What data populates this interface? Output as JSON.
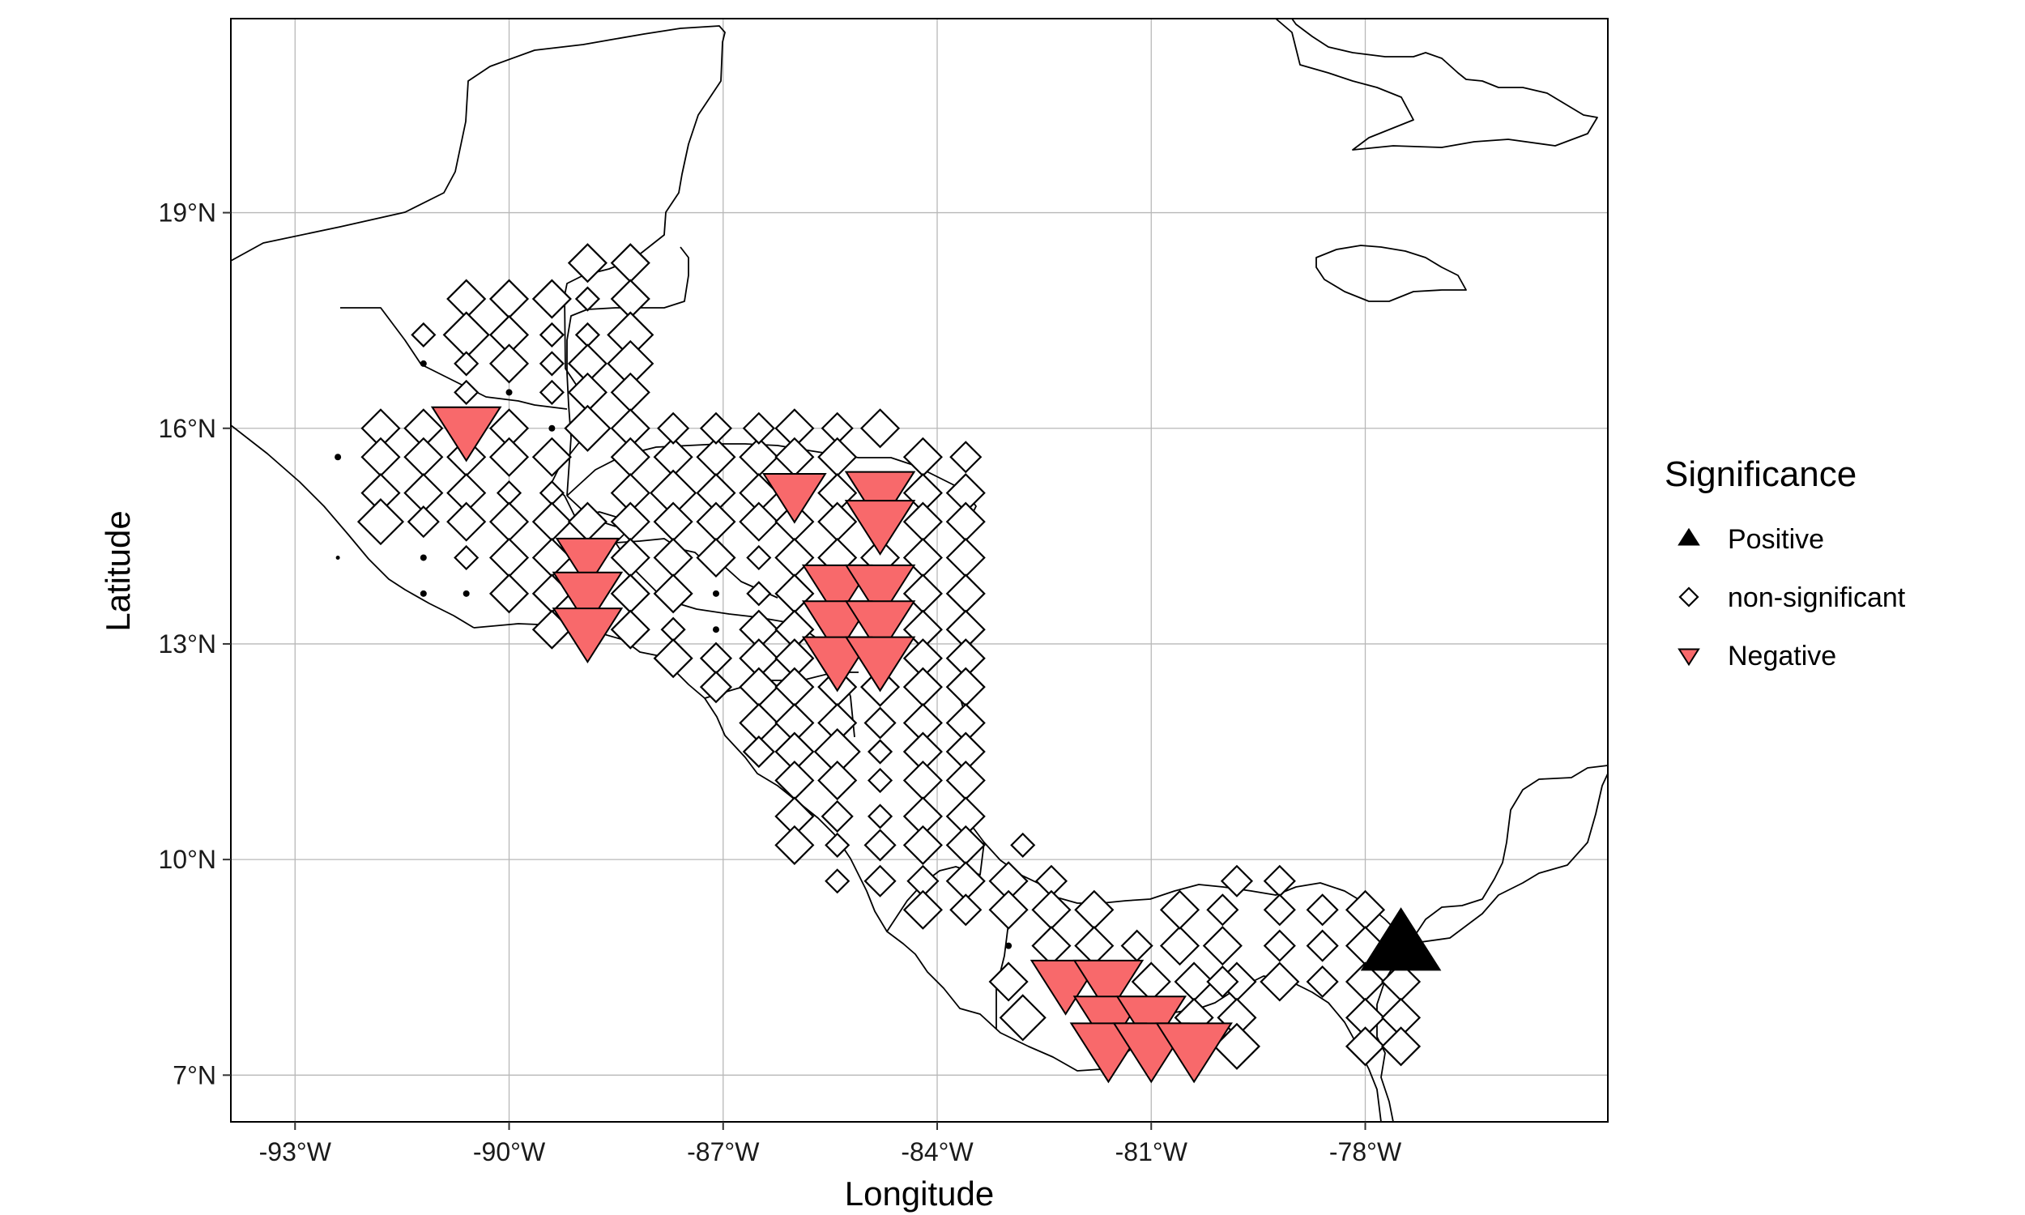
{
  "map": {
    "xlabel": "Longitude",
    "ylabel": "Latitude",
    "xlim": [
      -93.9,
      -74.6
    ],
    "ylim": [
      6.35,
      21.7
    ],
    "x_ticks": [
      {
        "value": -93,
        "label": "-93°W"
      },
      {
        "value": -90,
        "label": "-90°W"
      },
      {
        "value": -87,
        "label": "-87°W"
      },
      {
        "value": -84,
        "label": "-84°W"
      },
      {
        "value": -81,
        "label": "-81°W"
      },
      {
        "value": -78,
        "label": "-78°W"
      }
    ],
    "y_ticks": [
      {
        "value": 7,
        "label": "7°N"
      },
      {
        "value": 10,
        "label": "10°N"
      },
      {
        "value": 13,
        "label": "13°N"
      },
      {
        "value": 16,
        "label": "16°N"
      },
      {
        "value": 19,
        "label": "19°N"
      }
    ],
    "grid": true,
    "colors": {
      "negative": "#F8696B",
      "positive": "#000000",
      "nonsig_fill": "#ffffff",
      "outline": "#000000"
    }
  },
  "legend": {
    "title": "Significance",
    "position": "right",
    "items": [
      {
        "label": "Positive",
        "shape": "triangle-up",
        "color": "#000000"
      },
      {
        "label": "non-significant",
        "shape": "diamond",
        "color": "#ffffff"
      },
      {
        "label": "Negative",
        "shape": "triangle-down",
        "color": "#F8696B"
      }
    ]
  },
  "chart_data": {
    "type": "scatter",
    "xlabel": "Longitude",
    "ylabel": "Latitude",
    "xlim": [
      -93.9,
      -74.6
    ],
    "ylim": [
      6.35,
      21.7
    ],
    "size_scale": "magnitude 0-6",
    "series": [
      {
        "name": "Positive",
        "points": [
          [
            -77.5,
            8.8,
            6
          ]
        ]
      },
      {
        "name": "Negative",
        "points": [
          [
            -90.6,
            16.0,
            5
          ],
          [
            -86.0,
            15.1,
            4
          ],
          [
            -84.8,
            15.1,
            5
          ],
          [
            -84.8,
            14.7,
            5
          ],
          [
            -88.9,
            14.2,
            4
          ],
          [
            -88.9,
            13.7,
            5
          ],
          [
            -88.9,
            13.2,
            5
          ],
          [
            -85.4,
            13.8,
            5
          ],
          [
            -84.8,
            13.8,
            5
          ],
          [
            -85.4,
            13.3,
            5
          ],
          [
            -84.8,
            13.3,
            5
          ],
          [
            -85.4,
            12.8,
            5
          ],
          [
            -84.8,
            12.8,
            5
          ],
          [
            -82.2,
            8.3,
            5
          ],
          [
            -81.6,
            8.3,
            5
          ],
          [
            -81.6,
            7.8,
            5
          ],
          [
            -81.0,
            7.8,
            5
          ],
          [
            -81.6,
            7.4,
            6
          ],
          [
            -81.0,
            7.4,
            6
          ],
          [
            -80.4,
            7.4,
            6
          ]
        ]
      },
      {
        "name": "non-significant",
        "points": [
          [
            -88.9,
            18.3,
            4
          ],
          [
            -88.9,
            17.8,
            2
          ],
          [
            -88.9,
            17.3,
            2
          ],
          [
            -88.9,
            16.9,
            4
          ],
          [
            -88.9,
            16.5,
            4
          ],
          [
            -88.9,
            16.0,
            5
          ],
          [
            -88.3,
            18.3,
            4
          ],
          [
            -88.3,
            17.8,
            4
          ],
          [
            -88.3,
            17.3,
            5
          ],
          [
            -88.3,
            16.9,
            5
          ],
          [
            -88.3,
            16.5,
            4
          ],
          [
            -88.3,
            16.0,
            4
          ],
          [
            -90.6,
            17.8,
            4
          ],
          [
            -90.0,
            17.8,
            4
          ],
          [
            -89.4,
            17.8,
            4
          ],
          [
            -91.2,
            17.3,
            2
          ],
          [
            -90.6,
            17.3,
            5
          ],
          [
            -90.0,
            17.3,
            4
          ],
          [
            -89.4,
            17.3,
            2
          ],
          [
            -91.2,
            16.9,
            1
          ],
          [
            -90.6,
            16.9,
            2
          ],
          [
            -90.0,
            16.9,
            4
          ],
          [
            -89.4,
            16.9,
            2
          ],
          [
            -90.6,
            16.5,
            2
          ],
          [
            -90.0,
            16.5,
            1
          ],
          [
            -89.4,
            16.5,
            2
          ],
          [
            -91.8,
            16.0,
            4
          ],
          [
            -91.2,
            16.0,
            4
          ],
          [
            -90.0,
            16.0,
            4
          ],
          [
            -89.4,
            16.0,
            1
          ],
          [
            -91.8,
            15.6,
            4
          ],
          [
            -91.2,
            15.6,
            4
          ],
          [
            -90.6,
            15.6,
            4
          ],
          [
            -90.0,
            15.6,
            4
          ],
          [
            -89.4,
            15.6,
            4
          ],
          [
            -92.4,
            15.6,
            1
          ],
          [
            -91.2,
            15.1,
            4
          ],
          [
            -90.6,
            15.1,
            4
          ],
          [
            -90.0,
            15.1,
            2
          ],
          [
            -89.4,
            15.1,
            2
          ],
          [
            -91.8,
            15.1,
            4
          ],
          [
            -91.8,
            14.7,
            5
          ],
          [
            -91.2,
            14.7,
            3
          ],
          [
            -90.6,
            14.7,
            4
          ],
          [
            -90.0,
            14.7,
            4
          ],
          [
            -89.4,
            14.7,
            4
          ],
          [
            -88.9,
            14.7,
            4
          ],
          [
            -91.2,
            14.2,
            1
          ],
          [
            -90.6,
            14.2,
            2
          ],
          [
            -90.0,
            14.2,
            4
          ],
          [
            -89.4,
            14.2,
            4
          ],
          [
            -92.4,
            14.2,
            0
          ],
          [
            -91.2,
            13.7,
            1
          ],
          [
            -90.6,
            13.7,
            1
          ],
          [
            -89.4,
            13.7,
            4
          ],
          [
            -90.0,
            13.7,
            4
          ],
          [
            -89.4,
            13.2,
            4
          ],
          [
            -88.3,
            15.6,
            4
          ],
          [
            -87.7,
            15.6,
            4
          ],
          [
            -87.1,
            15.6,
            4
          ],
          [
            -86.5,
            15.6,
            4
          ],
          [
            -87.7,
            16.0,
            3
          ],
          [
            -87.1,
            16.0,
            3
          ],
          [
            -86.5,
            16.0,
            3
          ],
          [
            -86.0,
            16.0,
            4
          ],
          [
            -85.4,
            16.0,
            3
          ],
          [
            -84.8,
            16.0,
            4
          ],
          [
            -86.0,
            15.6,
            4
          ],
          [
            -85.4,
            15.6,
            4
          ],
          [
            -84.2,
            15.6,
            4
          ],
          [
            -83.6,
            15.6,
            3
          ],
          [
            -88.3,
            15.1,
            4
          ],
          [
            -87.7,
            15.1,
            5
          ],
          [
            -87.1,
            15.1,
            4
          ],
          [
            -86.5,
            15.1,
            4
          ],
          [
            -85.4,
            15.1,
            4
          ],
          [
            -84.2,
            15.1,
            4
          ],
          [
            -83.6,
            15.1,
            4
          ],
          [
            -88.3,
            14.7,
            4
          ],
          [
            -87.7,
            14.7,
            4
          ],
          [
            -87.1,
            14.7,
            4
          ],
          [
            -86.5,
            14.7,
            4
          ],
          [
            -86.0,
            14.7,
            4
          ],
          [
            -85.4,
            14.7,
            4
          ],
          [
            -84.2,
            14.7,
            4
          ],
          [
            -83.6,
            14.7,
            4
          ],
          [
            -88.3,
            14.2,
            4
          ],
          [
            -87.7,
            14.2,
            4
          ],
          [
            -87.1,
            14.2,
            4
          ],
          [
            -86.5,
            14.2,
            2
          ],
          [
            -86.0,
            14.2,
            4
          ],
          [
            -85.4,
            14.2,
            4
          ],
          [
            -84.8,
            14.2,
            4
          ],
          [
            -84.2,
            14.2,
            4
          ],
          [
            -83.6,
            14.2,
            4
          ],
          [
            -88.3,
            13.7,
            4
          ],
          [
            -87.7,
            13.7,
            4
          ],
          [
            -87.1,
            13.7,
            1
          ],
          [
            -86.5,
            13.7,
            2
          ],
          [
            -86.0,
            13.7,
            4
          ],
          [
            -84.2,
            13.7,
            4
          ],
          [
            -83.6,
            13.7,
            4
          ],
          [
            -88.3,
            13.2,
            4
          ],
          [
            -87.7,
            13.2,
            2
          ],
          [
            -87.1,
            13.2,
            1
          ],
          [
            -86.5,
            13.2,
            4
          ],
          [
            -86.0,
            13.2,
            4
          ],
          [
            -84.2,
            13.2,
            4
          ],
          [
            -83.6,
            13.2,
            4
          ],
          [
            -87.7,
            12.8,
            4
          ],
          [
            -87.1,
            12.8,
            3
          ],
          [
            -86.5,
            12.8,
            4
          ],
          [
            -86.0,
            12.8,
            4
          ],
          [
            -84.2,
            12.8,
            4
          ],
          [
            -83.6,
            12.8,
            4
          ],
          [
            -87.1,
            12.4,
            3
          ],
          [
            -86.5,
            12.4,
            4
          ],
          [
            -86.0,
            12.4,
            4
          ],
          [
            -85.4,
            12.4,
            4
          ],
          [
            -84.8,
            12.4,
            4
          ],
          [
            -84.2,
            12.4,
            4
          ],
          [
            -83.6,
            12.4,
            4
          ],
          [
            -86.5,
            11.9,
            4
          ],
          [
            -86.0,
            11.9,
            4
          ],
          [
            -85.4,
            11.9,
            4
          ],
          [
            -84.8,
            11.9,
            3
          ],
          [
            -84.2,
            11.9,
            4
          ],
          [
            -83.6,
            11.9,
            4
          ],
          [
            -86.5,
            11.5,
            3
          ],
          [
            -86.0,
            11.5,
            4
          ],
          [
            -85.4,
            11.5,
            5
          ],
          [
            -84.8,
            11.5,
            2
          ],
          [
            -84.2,
            11.5,
            4
          ],
          [
            -83.6,
            11.5,
            4
          ],
          [
            -86.0,
            11.1,
            4
          ],
          [
            -85.4,
            11.1,
            4
          ],
          [
            -84.8,
            11.1,
            2
          ],
          [
            -84.2,
            11.1,
            4
          ],
          [
            -83.6,
            11.1,
            4
          ],
          [
            -86.0,
            10.6,
            4
          ],
          [
            -85.4,
            10.6,
            3
          ],
          [
            -84.8,
            10.6,
            2
          ],
          [
            -84.2,
            10.6,
            4
          ],
          [
            -83.6,
            10.6,
            4
          ],
          [
            -86.0,
            10.2,
            4
          ],
          [
            -85.4,
            10.2,
            2
          ],
          [
            -84.8,
            10.2,
            3
          ],
          [
            -84.2,
            10.2,
            4
          ],
          [
            -83.6,
            10.2,
            4
          ],
          [
            -82.8,
            10.2,
            2
          ],
          [
            -85.4,
            9.7,
            2
          ],
          [
            -84.8,
            9.7,
            3
          ],
          [
            -84.2,
            9.7,
            3
          ],
          [
            -83.6,
            9.7,
            4
          ],
          [
            -83.0,
            9.7,
            4
          ],
          [
            -82.4,
            9.7,
            3
          ],
          [
            -84.2,
            9.3,
            4
          ],
          [
            -83.6,
            9.3,
            3
          ],
          [
            -83.0,
            9.3,
            4
          ],
          [
            -82.4,
            9.3,
            4
          ],
          [
            -81.8,
            9.3,
            4
          ],
          [
            -83.0,
            8.8,
            1
          ],
          [
            -82.4,
            8.8,
            4
          ],
          [
            -81.8,
            8.8,
            4
          ],
          [
            -81.2,
            8.8,
            3
          ],
          [
            -80.6,
            8.8,
            4
          ],
          [
            -80.0,
            8.8,
            4
          ],
          [
            -83.0,
            8.3,
            4
          ],
          [
            -81.0,
            8.3,
            4
          ],
          [
            -80.4,
            8.3,
            4
          ],
          [
            -79.8,
            8.3,
            4
          ],
          [
            -82.8,
            7.8,
            5
          ],
          [
            -80.4,
            7.8,
            4
          ],
          [
            -79.8,
            7.8,
            4
          ],
          [
            -79.8,
            7.4,
            5
          ],
          [
            -79.8,
            9.7,
            3
          ],
          [
            -79.2,
            9.7,
            3
          ],
          [
            -79.2,
            9.3,
            3
          ],
          [
            -78.6,
            9.3,
            3
          ],
          [
            -78.0,
            9.3,
            4
          ],
          [
            -80.6,
            9.3,
            4
          ],
          [
            -80.0,
            9.3,
            3
          ],
          [
            -79.2,
            8.8,
            3
          ],
          [
            -78.6,
            8.8,
            3
          ],
          [
            -78.0,
            8.8,
            4
          ],
          [
            -78.6,
            8.3,
            3
          ],
          [
            -78.0,
            8.3,
            4
          ],
          [
            -77.5,
            8.3,
            4
          ],
          [
            -78.0,
            7.8,
            4
          ],
          [
            -77.5,
            7.8,
            4
          ],
          [
            -78.0,
            7.4,
            4
          ],
          [
            -77.5,
            7.4,
            4
          ],
          [
            -79.2,
            8.3,
            4
          ],
          [
            -80.0,
            8.3,
            3
          ]
        ]
      }
    ]
  }
}
